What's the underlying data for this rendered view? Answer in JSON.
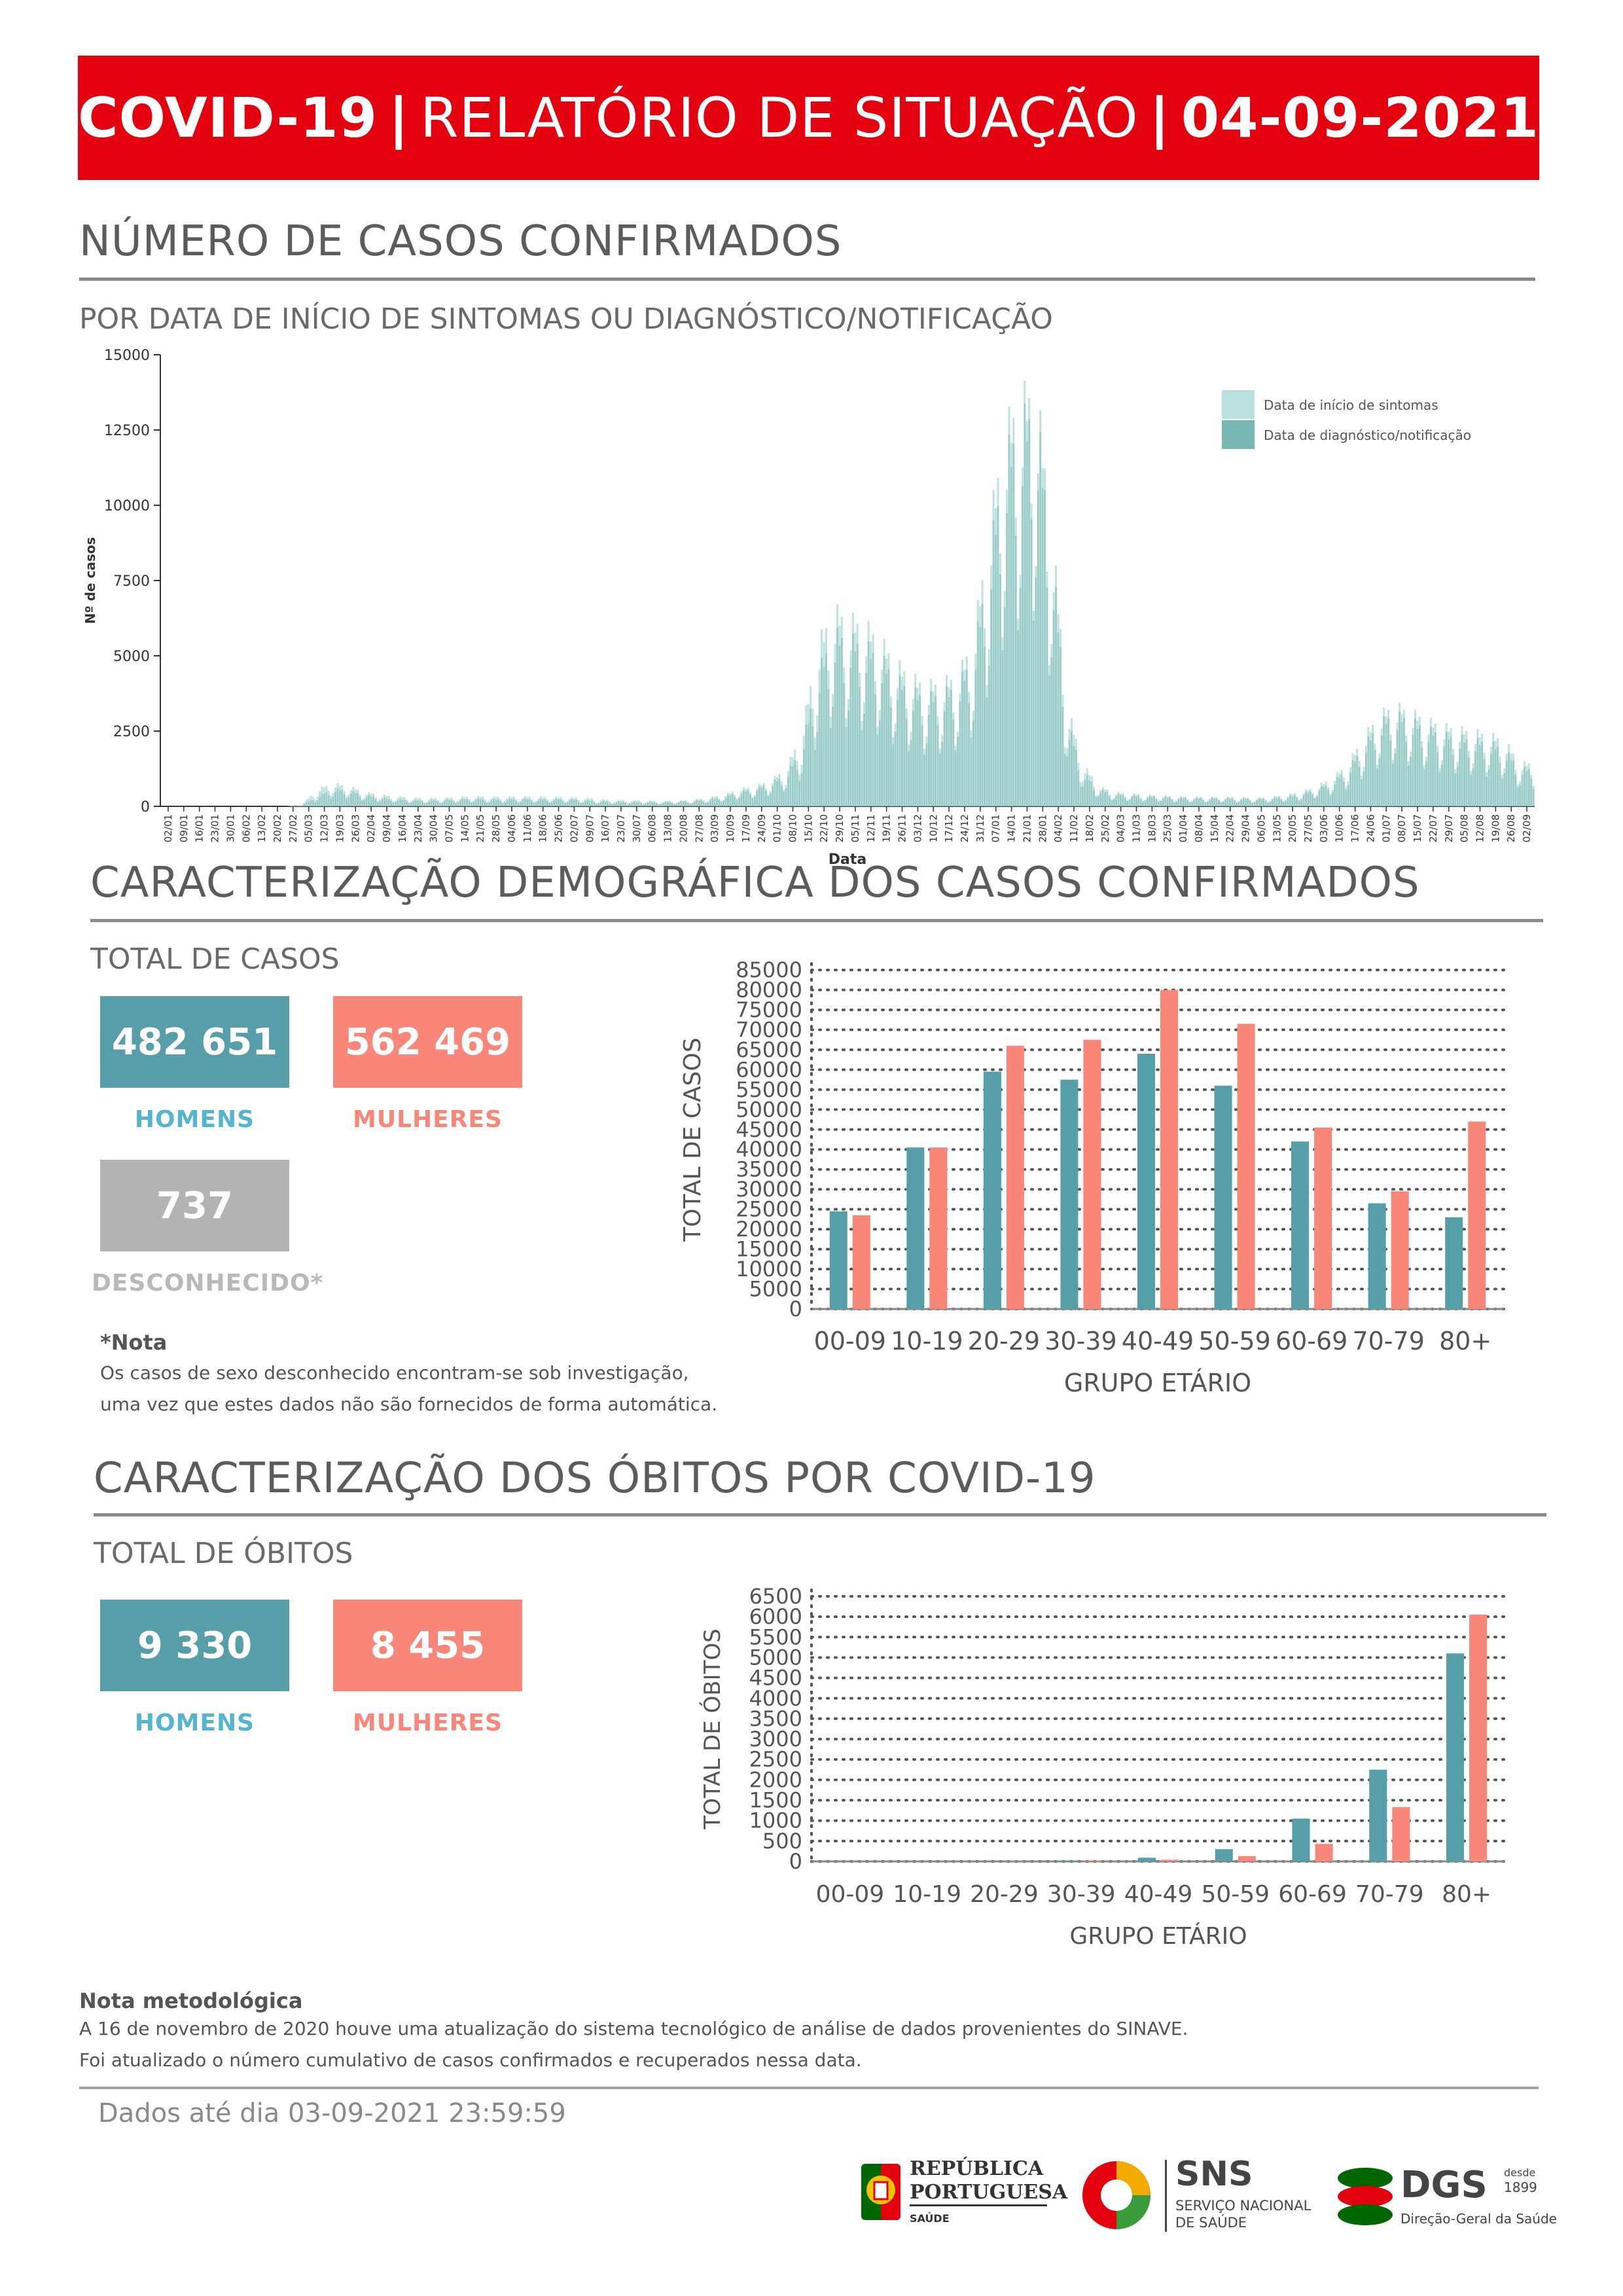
{
  "header": {
    "title_part1": "COVID-19",
    "separator": "|",
    "title_part2": "RELATÓRIO DE SITUAÇÃO",
    "date": "04-09-2021"
  },
  "cases_section": {
    "title": "NÚMERO DE CASOS CONFIRMADOS",
    "subtitle": "POR DATA DE INÍCIO DE SINTOMAS OU DIAGNÓSTICO/NOTIFICAÇÃO"
  },
  "demographic_section": {
    "title": "CARACTERIZAÇÃO DEMOGRÁFICA DOS CASOS CONFIRMADOS",
    "total_label": "TOTAL DE CASOS",
    "men_value": "482 651",
    "men_label": "HOMENS",
    "women_value": "562 469",
    "women_label": "MULHERES",
    "unknown_value": "737",
    "unknown_label": "DESCONHECIDO*",
    "note_title": "*Nota",
    "note_line1": "Os casos de sexo desconhecido encontram-se sob investigação,",
    "note_line2": "uma vez que estes dados não são fornecidos de forma automática."
  },
  "deaths_section": {
    "title": "CARACTERIZAÇÃO DOS ÓBITOS POR COVID-19",
    "total_label": "TOTAL DE ÓBITOS",
    "men_value": "9 330",
    "men_label": "HOMENS",
    "women_value": "8 455",
    "women_label": "MULHERES"
  },
  "methodology": {
    "title": "Nota metodológica",
    "line1": "A 16 de novembro de 2020 houve uma atualização do sistema tecnológico de análise de dados provenientes do SINAVE.",
    "line2": "Foi atualizado o número cumulativo de casos confirmados e recuperados nessa data."
  },
  "footer": {
    "data_until": "Dados até dia 03-09-2021 23:59:59",
    "logo_republica_line1": "REPÚBLICA",
    "logo_republica_line2": "PORTUGUESA",
    "logo_republica_line3": "SAÚDE",
    "logo_sns_title": "SNS",
    "logo_sns_line1": "SERVIÇO NACIONAL",
    "logo_sns_line2": "DE SAÚDE",
    "logo_dgs_title": "DGS",
    "logo_dgs_since": "desde",
    "logo_dgs_year": "1899",
    "logo_dgs_sub": "Direção-Geral da Saúde"
  },
  "colors": {
    "banner_red": "#e3000f",
    "men_teal": "#579fa8",
    "women_salmon": "#f8877a",
    "unknown_grey": "#b3b3b3",
    "symptoms_light": "#b9e0dc",
    "notification_dark": "#77b8b3"
  },
  "chart_data": [
    {
      "type": "bar",
      "ylabel": "Nº de casos",
      "xlabel": "Data",
      "ylim": [
        0,
        15000
      ],
      "yticks": [
        0,
        2500,
        5000,
        7500,
        10000,
        12500,
        15000
      ],
      "legend_position": "top-right",
      "grid": false,
      "x_ticks": [
        "02/01",
        "09/01",
        "16/01",
        "23/01",
        "30/01",
        "06/02",
        "13/02",
        "20/02",
        "27/02",
        "05/03",
        "12/03",
        "19/03",
        "26/03",
        "02/04",
        "09/04",
        "16/04",
        "23/04",
        "30/04",
        "07/05",
        "14/05",
        "21/05",
        "28/05",
        "04/06",
        "11/06",
        "18/06",
        "25/06",
        "02/07",
        "09/07",
        "16/07",
        "23/07",
        "30/07",
        "06/08",
        "13/08",
        "20/08",
        "27/08",
        "03/09",
        "10/09",
        "17/09",
        "24/09",
        "01/10",
        "08/10",
        "15/10",
        "22/10",
        "29/10",
        "05/11",
        "12/11",
        "19/11",
        "26/11",
        "03/12",
        "10/12",
        "17/12",
        "24/12",
        "31/12",
        "07/01",
        "14/01",
        "21/01",
        "28/01",
        "04/02",
        "11/02",
        "18/02",
        "25/02",
        "04/03",
        "11/03",
        "18/03",
        "25/03",
        "01/04",
        "08/04",
        "15/04",
        "22/04",
        "29/04",
        "06/05",
        "13/05",
        "20/05",
        "27/05",
        "03/06",
        "10/06",
        "17/06",
        "24/06",
        "01/07",
        "08/07",
        "15/07",
        "22/07",
        "29/07",
        "05/08",
        "12/08",
        "19/08",
        "26/08",
        "02/09"
      ],
      "series": [
        {
          "name": "Data de início de sintomas",
          "weekly_peak_values": [
            0,
            0,
            0,
            0,
            0,
            0,
            0,
            0,
            0,
            80,
            600,
            800,
            700,
            500,
            400,
            350,
            300,
            280,
            300,
            320,
            350,
            330,
            330,
            340,
            330,
            330,
            320,
            300,
            250,
            220,
            220,
            200,
            180,
            200,
            230,
            300,
            400,
            600,
            700,
            900,
            1300,
            2500,
            5500,
            6800,
            6500,
            6300,
            5800,
            5000,
            4500,
            4200,
            4300,
            4500,
            5800,
            9500,
            13000,
            14000,
            14500,
            9800,
            3500,
            1500,
            700,
            500,
            450,
            400,
            380,
            350,
            330,
            330,
            330,
            320,
            300,
            320,
            400,
            500,
            700,
            1000,
            1500,
            2400,
            3200,
            3500,
            3300,
            3000,
            2800,
            2700,
            2600,
            2500,
            2300,
            1500
          ]
        },
        {
          "name": "Data de diagnóstico/notificação",
          "weekly_peak_values": [
            0,
            0,
            0,
            0,
            0,
            0,
            0,
            0,
            0,
            50,
            350,
            600,
            550,
            400,
            300,
            250,
            220,
            200,
            220,
            240,
            260,
            250,
            250,
            260,
            250,
            250,
            240,
            220,
            180,
            160,
            160,
            150,
            140,
            160,
            180,
            240,
            330,
            500,
            600,
            800,
            1100,
            2000,
            4500,
            6000,
            5800,
            5600,
            5200,
            4500,
            4000,
            3800,
            3900,
            4200,
            5200,
            8500,
            12000,
            13200,
            13800,
            9000,
            3000,
            1200,
            600,
            420,
            380,
            340,
            320,
            300,
            280,
            280,
            280,
            270,
            250,
            270,
            330,
            430,
            600,
            850,
            1300,
            2100,
            2900,
            3200,
            3000,
            2700,
            2500,
            2400,
            2300,
            2200,
            2000,
            1300
          ]
        }
      ]
    },
    {
      "type": "bar",
      "ylabel": "TOTAL DE CASOS",
      "xlabel": "GRUPO ETÁRIO",
      "ylim": [
        0,
        85000
      ],
      "yticks": [
        0,
        5000,
        10000,
        15000,
        20000,
        25000,
        30000,
        35000,
        40000,
        45000,
        50000,
        55000,
        60000,
        65000,
        70000,
        75000,
        80000,
        85000
      ],
      "grid": true,
      "categories": [
        "00-09",
        "10-19",
        "20-29",
        "30-39",
        "40-49",
        "50-59",
        "60-69",
        "70-79",
        "80+"
      ],
      "series": [
        {
          "name": "HOMENS",
          "values": [
            24500,
            40500,
            59500,
            57500,
            64000,
            56000,
            42000,
            26500,
            23000
          ]
        },
        {
          "name": "MULHERES",
          "values": [
            23500,
            40500,
            66000,
            67500,
            80000,
            71500,
            45500,
            29500,
            47000
          ]
        }
      ]
    },
    {
      "type": "bar",
      "ylabel": "TOTAL DE ÓBITOS",
      "xlabel": "GRUPO ETÁRIO",
      "ylim": [
        0,
        6500
      ],
      "yticks": [
        0,
        500,
        1000,
        1500,
        2000,
        2500,
        3000,
        3500,
        4000,
        4500,
        5000,
        5500,
        6000,
        6500
      ],
      "grid": true,
      "categories": [
        "00-09",
        "10-19",
        "20-29",
        "30-39",
        "40-49",
        "50-59",
        "60-69",
        "70-79",
        "80+"
      ],
      "series": [
        {
          "name": "HOMENS",
          "values": [
            2,
            3,
            10,
            25,
            90,
            300,
            1050,
            2250,
            5100
          ]
        },
        {
          "name": "MULHERES",
          "values": [
            1,
            2,
            6,
            15,
            40,
            130,
            430,
            1330,
            6050
          ]
        }
      ]
    }
  ]
}
